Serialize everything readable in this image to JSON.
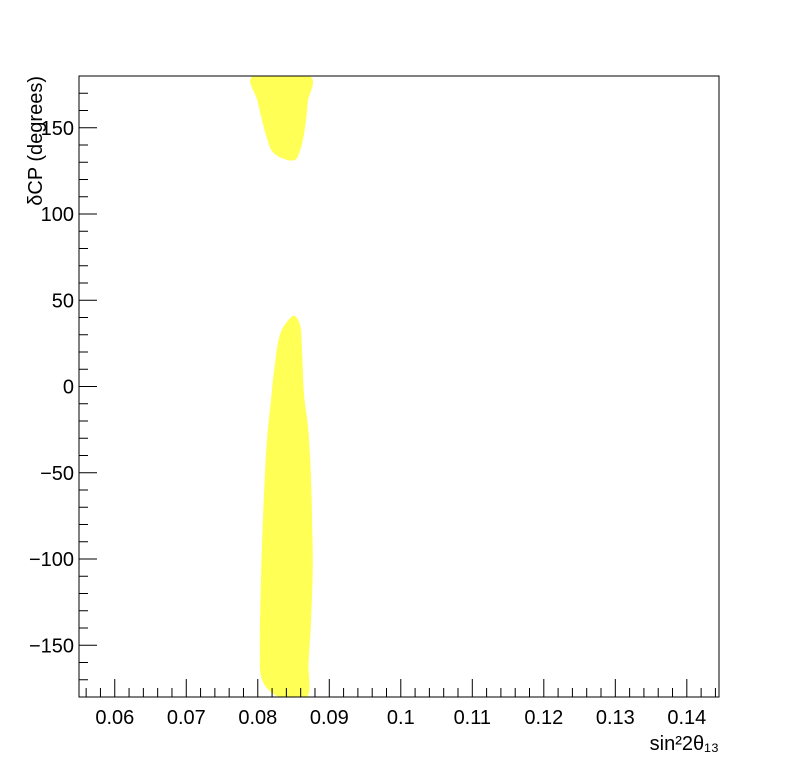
{
  "chart_data": {
    "type": "contour",
    "xlabel": "sin²2θ₁₃",
    "ylabel": "δCP (degrees)",
    "xlim": [
      0.055,
      0.1445
    ],
    "ylim": [
      -180,
      180
    ],
    "x_ticks": [
      0.06,
      0.07,
      0.08,
      0.09,
      0.1,
      0.11,
      0.12,
      0.13,
      0.14
    ],
    "x_tick_labels": [
      "0.06",
      "0.07",
      "0.08",
      "0.09",
      "0.1",
      "0.11",
      "0.12",
      "0.13",
      "0.14"
    ],
    "y_ticks": [
      -150,
      -100,
      -50,
      0,
      50,
      100,
      150
    ],
    "y_tick_labels": [
      "−150",
      "−100",
      "−50",
      "0",
      "50",
      "100",
      "150"
    ],
    "fill_color": "#ffff55",
    "regions": [
      {
        "points": [
          [
            0.083,
            -180
          ],
          [
            0.0806,
            -170
          ],
          [
            0.0803,
            -150
          ],
          [
            0.0804,
            -120
          ],
          [
            0.0806,
            -90
          ],
          [
            0.0809,
            -60
          ],
          [
            0.0813,
            -30
          ],
          [
            0.0818,
            -10
          ],
          [
            0.0823,
            10
          ],
          [
            0.0831,
            30
          ],
          [
            0.0846,
            40
          ],
          [
            0.0854,
            40
          ],
          [
            0.086,
            34
          ],
          [
            0.0862,
            20
          ],
          [
            0.0864,
            0
          ],
          [
            0.0866,
            -10
          ],
          [
            0.087,
            -22
          ],
          [
            0.0873,
            -40
          ],
          [
            0.0875,
            -60
          ],
          [
            0.0876,
            -80
          ],
          [
            0.0877,
            -100
          ],
          [
            0.0876,
            -120
          ],
          [
            0.0874,
            -140
          ],
          [
            0.0871,
            -160
          ],
          [
            0.0869,
            -180
          ]
        ]
      },
      {
        "points": [
          [
            0.0794,
            180
          ],
          [
            0.08,
            165
          ],
          [
            0.0812,
            145
          ],
          [
            0.0823,
            135
          ],
          [
            0.085,
            131
          ],
          [
            0.086,
            138
          ],
          [
            0.0866,
            150
          ],
          [
            0.087,
            165
          ],
          [
            0.0872,
            180
          ]
        ]
      }
    ]
  }
}
